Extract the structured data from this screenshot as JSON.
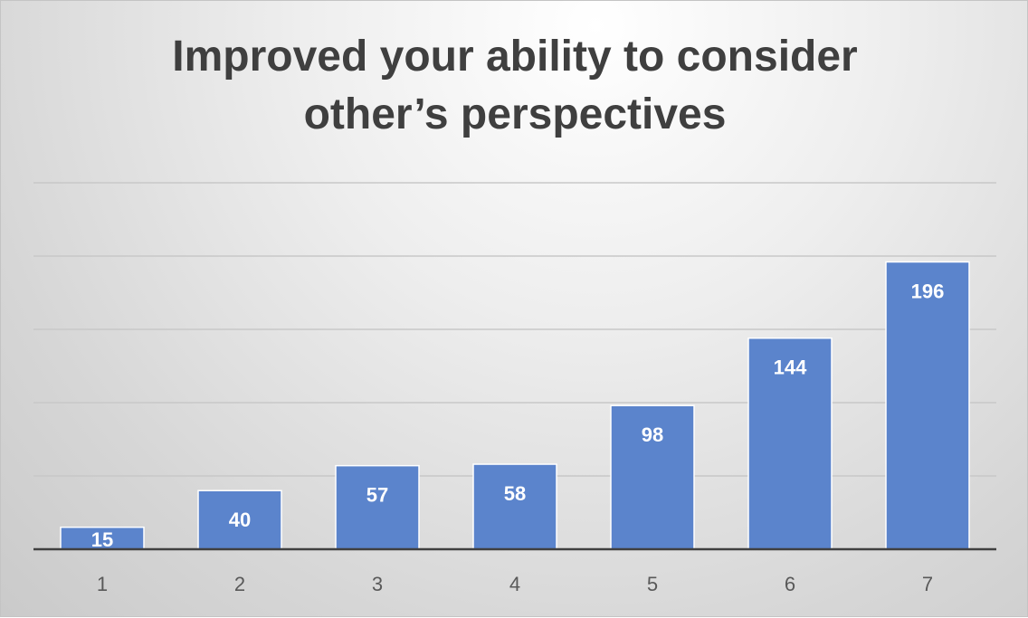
{
  "chart_data": {
    "type": "bar",
    "title_lines": [
      "Improved your ability to consider",
      "other’s perspectives"
    ],
    "xlabel": "",
    "ylabel": "",
    "categories": [
      "1",
      "2",
      "3",
      "4",
      "5",
      "6",
      "7"
    ],
    "values": [
      15,
      40,
      57,
      58,
      98,
      144,
      196
    ],
    "ylim": [
      0,
      250
    ],
    "gridline_step": 50,
    "grid": true,
    "legend": "none",
    "bar_color": "#5b84cc",
    "bar_edge_color": "#ffffff",
    "label_color": "#ffffff"
  }
}
